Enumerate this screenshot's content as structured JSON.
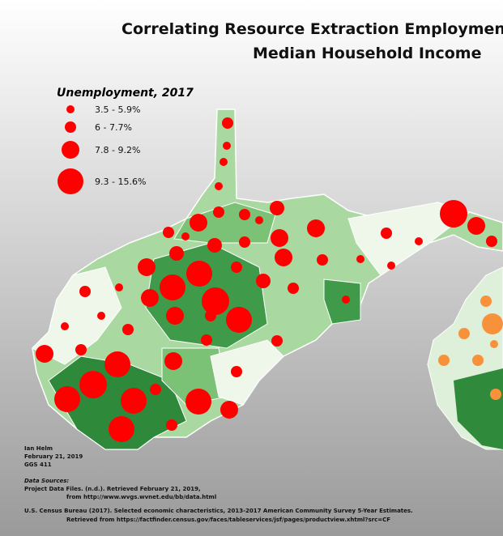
{
  "title": [
    "Correlating Resource Extraction Employment",
    "Median Household Income"
  ],
  "legend": {
    "title": "Unemployment, 2017",
    "items": [
      "3.5 - 5.9%",
      "6 - 7.7%",
      "7.8 - 9.2%",
      "9.3 - 15.6%"
    ]
  },
  "credits": [
    "Ian Helm",
    "February 21, 2019",
    "GGS 411"
  ],
  "sources": {
    "heading": "Data Sources:",
    "lines": [
      "Project Data Files. (n.d.). Retrieved February 21, 2019,",
      "from http://www.wvgs.wvnet.edu/bb/data.html",
      "U.S. Census Bureau (2017). Selected economic characteristics, 2013-2017 American Community Survey 5-Year Estimates.",
      "Retrieved from https://factfinder.census.gov/faces/tableservices/jsf/pages/productview.xhtml?src=CF"
    ]
  }
}
